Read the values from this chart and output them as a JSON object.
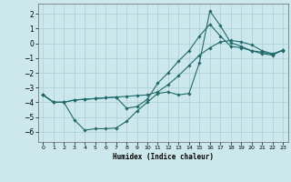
{
  "xlabel": "Humidex (Indice chaleur)",
  "bg_color": "#cce8ec",
  "grid_color": "#aacdd4",
  "line_color": "#1f6b6b",
  "xlim": [
    -0.5,
    23.5
  ],
  "ylim": [
    -6.7,
    2.7
  ],
  "yticks": [
    -6,
    -5,
    -4,
    -3,
    -2,
    -1,
    0,
    1,
    2
  ],
  "xticks": [
    0,
    1,
    2,
    3,
    4,
    5,
    6,
    7,
    8,
    9,
    10,
    11,
    12,
    13,
    14,
    15,
    16,
    17,
    18,
    19,
    20,
    21,
    22,
    23
  ],
  "curve1_x": [
    0,
    1,
    2,
    3,
    4,
    5,
    6,
    7,
    8,
    9,
    10,
    11,
    12,
    13,
    14,
    15,
    16,
    17,
    18,
    19,
    20,
    21,
    22,
    23
  ],
  "curve1_y": [
    -3.5,
    -4.0,
    -4.0,
    -3.85,
    -3.8,
    -3.75,
    -3.7,
    -3.65,
    -3.6,
    -3.55,
    -3.5,
    -3.3,
    -2.8,
    -2.2,
    -1.5,
    -0.8,
    -0.3,
    0.1,
    0.2,
    0.1,
    -0.1,
    -0.5,
    -0.7,
    -0.5
  ],
  "curve2_x": [
    0,
    1,
    2,
    3,
    4,
    5,
    6,
    7,
    8,
    9,
    10,
    11,
    12,
    13,
    14,
    15,
    16,
    17,
    18,
    19,
    20,
    21,
    22,
    23
  ],
  "curve2_y": [
    -3.5,
    -4.0,
    -4.0,
    -5.2,
    -5.9,
    -5.8,
    -5.8,
    -5.75,
    -5.3,
    -4.6,
    -4.0,
    -3.4,
    -3.3,
    -3.5,
    -3.4,
    -1.3,
    2.2,
    1.2,
    0.05,
    -0.2,
    -0.5,
    -0.6,
    -0.75,
    -0.45
  ],
  "curve3_x": [
    0,
    1,
    2,
    3,
    4,
    5,
    6,
    7,
    8,
    9,
    10,
    11,
    12,
    13,
    14,
    15,
    16,
    17,
    18,
    19,
    20,
    21,
    22,
    23
  ],
  "curve3_y": [
    -3.5,
    -4.0,
    -4.0,
    -3.85,
    -3.8,
    -3.75,
    -3.7,
    -3.65,
    -4.4,
    -4.3,
    -3.8,
    -2.7,
    -2.0,
    -1.2,
    -0.5,
    0.5,
    1.3,
    0.5,
    -0.2,
    -0.3,
    -0.5,
    -0.7,
    -0.8,
    -0.45
  ]
}
